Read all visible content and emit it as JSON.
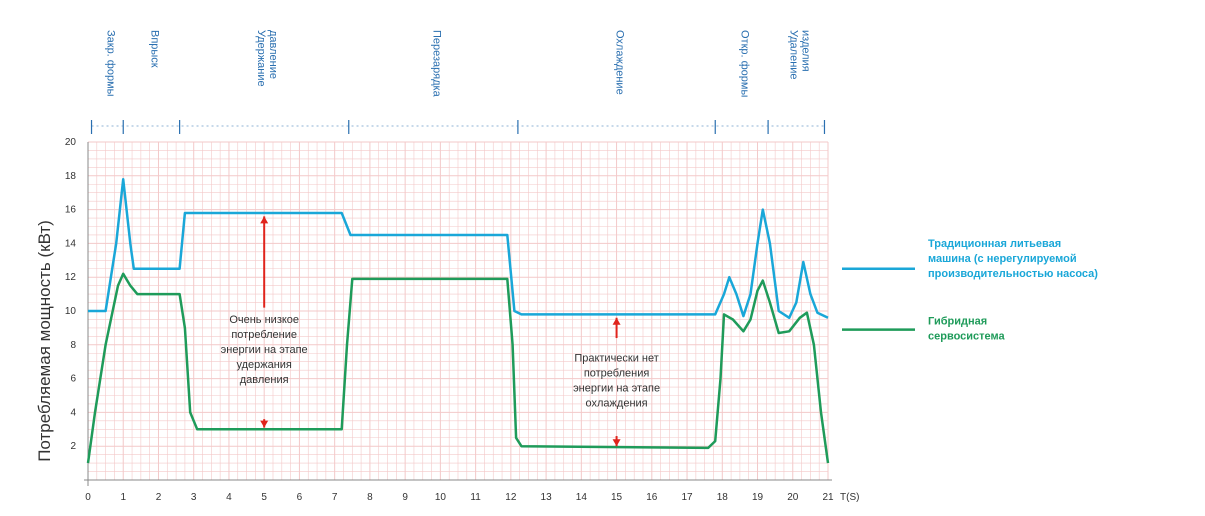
{
  "chart_data": {
    "type": "line",
    "ylabel": "Потребляемая мощность (кВт)",
    "xlabel": "T(S)",
    "xlim": [
      0,
      21
    ],
    "ylim": [
      0,
      20
    ],
    "x_ticks": [
      "0",
      "1",
      "2",
      "3",
      "4",
      "5",
      "6",
      "7",
      "8",
      "9",
      "10",
      "11",
      "12",
      "13",
      "14",
      "15",
      "16",
      "17",
      "18",
      "19",
      "20",
      "21"
    ],
    "y_ticks": [
      "2",
      "4",
      "6",
      "8",
      "10",
      "12",
      "14",
      "16",
      "18",
      "20"
    ],
    "phases": [
      {
        "label": "Закр. формы",
        "start": 0.1,
        "end": 1.0
      },
      {
        "label": "Впрыск",
        "start": 1.0,
        "end": 2.6
      },
      {
        "label": "Удержание давление",
        "start": 2.6,
        "end": 7.4
      },
      {
        "label": "Перезарядка",
        "start": 7.4,
        "end": 12.2
      },
      {
        "label": "Охлаждение",
        "start": 12.2,
        "end": 17.8
      },
      {
        "label": "Откр. формы",
        "start": 17.8,
        "end": 19.3
      },
      {
        "label": "Удаление изделия",
        "start": 19.3,
        "end": 20.9
      }
    ],
    "series": [
      {
        "name": "Традиционная литьевая машина (с нерегулируемой производительностью насоса)",
        "color": "#1aa7d8",
        "points": [
          [
            0,
            10
          ],
          [
            0.5,
            10
          ],
          [
            0.8,
            14
          ],
          [
            1.0,
            17.8
          ],
          [
            1.2,
            14
          ],
          [
            1.3,
            12.5
          ],
          [
            2.6,
            12.5
          ],
          [
            2.75,
            15.8
          ],
          [
            7.2,
            15.8
          ],
          [
            7.45,
            14.5
          ],
          [
            11.9,
            14.5
          ],
          [
            12.1,
            10
          ],
          [
            12.3,
            9.8
          ],
          [
            17.8,
            9.8
          ],
          [
            18.05,
            11
          ],
          [
            18.2,
            12
          ],
          [
            18.4,
            11
          ],
          [
            18.6,
            9.7
          ],
          [
            18.8,
            11
          ],
          [
            19.0,
            14
          ],
          [
            19.15,
            16
          ],
          [
            19.35,
            14
          ],
          [
            19.6,
            10
          ],
          [
            19.9,
            9.6
          ],
          [
            20.1,
            10.5
          ],
          [
            20.3,
            12.9
          ],
          [
            20.5,
            11
          ],
          [
            20.7,
            9.9
          ],
          [
            21.0,
            9.6
          ]
        ]
      },
      {
        "name": "Гибридная сервосистема",
        "color": "#1f9b5a",
        "points": [
          [
            0,
            1
          ],
          [
            0.2,
            4
          ],
          [
            0.5,
            8
          ],
          [
            0.85,
            11.5
          ],
          [
            1.0,
            12.2
          ],
          [
            1.2,
            11.5
          ],
          [
            1.4,
            11.0
          ],
          [
            2.6,
            11.0
          ],
          [
            2.75,
            9
          ],
          [
            2.9,
            4
          ],
          [
            3.1,
            3.0
          ],
          [
            7.2,
            3.0
          ],
          [
            7.35,
            8
          ],
          [
            7.5,
            11.9
          ],
          [
            11.9,
            11.9
          ],
          [
            12.05,
            8
          ],
          [
            12.15,
            2.5
          ],
          [
            12.3,
            2.0
          ],
          [
            17.6,
            1.9
          ],
          [
            17.8,
            2.3
          ],
          [
            17.95,
            6
          ],
          [
            18.05,
            9.8
          ],
          [
            18.3,
            9.5
          ],
          [
            18.6,
            8.8
          ],
          [
            18.8,
            9.5
          ],
          [
            19.0,
            11.2
          ],
          [
            19.15,
            11.8
          ],
          [
            19.35,
            10.5
          ],
          [
            19.6,
            8.7
          ],
          [
            19.9,
            8.8
          ],
          [
            20.2,
            9.6
          ],
          [
            20.4,
            9.9
          ],
          [
            20.6,
            8
          ],
          [
            20.8,
            4
          ],
          [
            21.0,
            1
          ]
        ]
      }
    ],
    "annotations": {
      "hold": [
        "Очень низкое",
        "потребление",
        "энергии на этапе",
        "удержания",
        "давления"
      ],
      "cooling": [
        "Практически нет",
        "потребления",
        "энергии на этапе",
        "охлаждения"
      ]
    }
  }
}
